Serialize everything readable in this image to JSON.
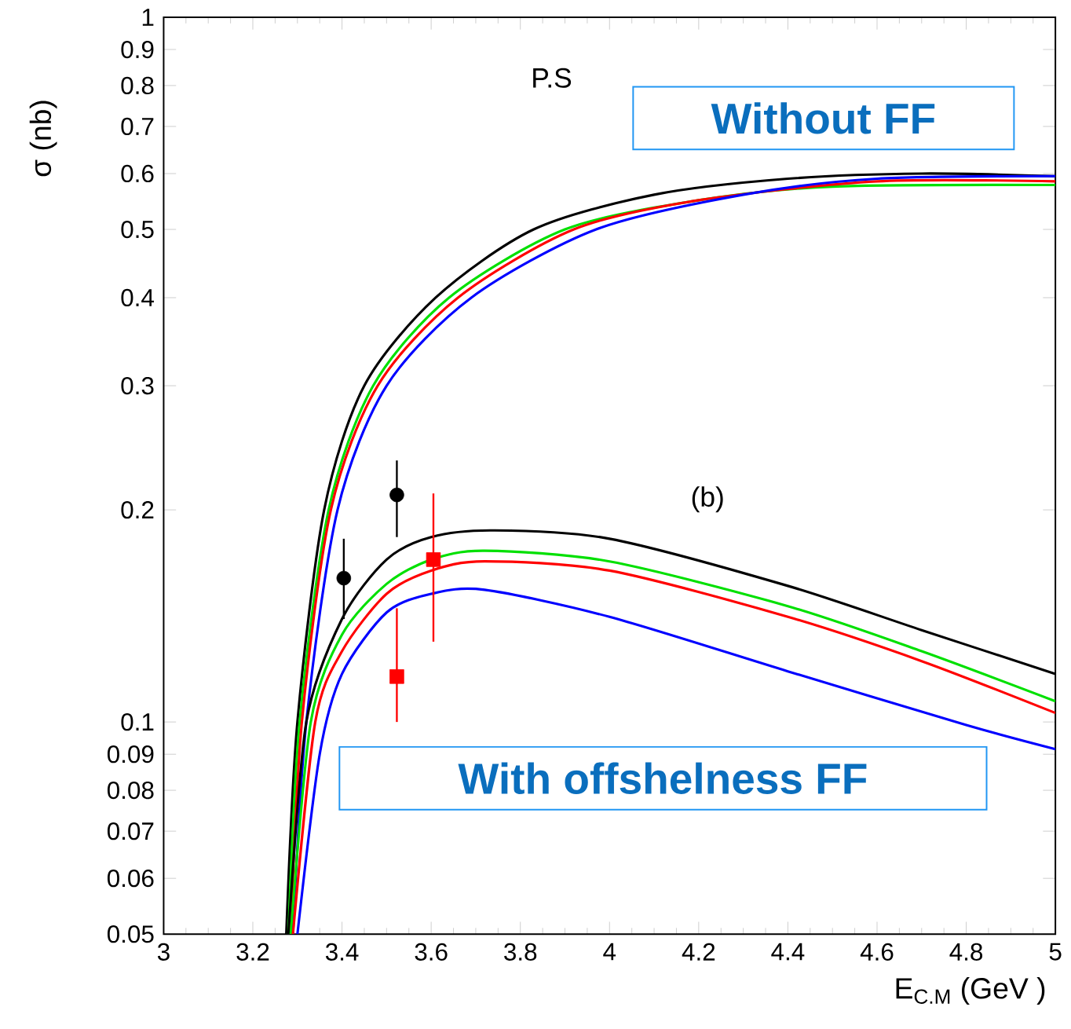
{
  "chart_data": {
    "type": "line",
    "xlabel": "E$_{C.M}$ (GeV )",
    "ylabel": "σ (nb)",
    "log": "y",
    "xlim": [
      3,
      5
    ],
    "ylim": [
      0.05,
      1
    ],
    "xticks": [
      3,
      3.2,
      3.4,
      3.6,
      3.8,
      4,
      4.2,
      4.4,
      4.6,
      4.8,
      5
    ],
    "yticks": [
      0.05,
      0.06,
      0.07,
      0.08,
      0.09,
      0.1,
      0.2,
      0.3,
      0.4,
      0.5,
      0.6,
      0.7,
      0.8,
      0.9,
      1
    ],
    "marker": "none",
    "annotations": [
      "P.S",
      "(b)",
      "Without FF",
      "With offshelness FF"
    ],
    "series": [
      {
        "color": "#000000",
        "x": [
          3.275,
          3.3,
          3.36,
          3.45,
          3.61,
          3.83,
          4.1,
          4.4,
          4.7,
          5
        ],
        "values": [
          0.05,
          0.1,
          0.2,
          0.3,
          0.4,
          0.5,
          0.56,
          0.59,
          0.6,
          0.595
        ]
      },
      {
        "color": "#00e000",
        "x": [
          3.28,
          3.305,
          3.37,
          3.47,
          3.64,
          3.9,
          4.2,
          4.5,
          5
        ],
        "values": [
          0.05,
          0.1,
          0.2,
          0.3,
          0.4,
          0.5,
          0.55,
          0.575,
          0.578
        ]
      },
      {
        "color": "#ff0000",
        "x": [
          3.285,
          3.31,
          3.375,
          3.48,
          3.66,
          3.92,
          4.2,
          4.6,
          5
        ],
        "values": [
          0.05,
          0.1,
          0.2,
          0.3,
          0.4,
          0.5,
          0.55,
          0.585,
          0.585
        ]
      },
      {
        "color": "#0000ff",
        "x": [
          3.29,
          3.32,
          3.39,
          3.5,
          3.69,
          3.97,
          4.3,
          4.6,
          5
        ],
        "values": [
          0.05,
          0.1,
          0.2,
          0.3,
          0.4,
          0.5,
          0.56,
          0.59,
          0.595
        ]
      },
      {
        "color": "#000000",
        "x": [
          3.28,
          3.32,
          3.4,
          3.5,
          3.6,
          3.74,
          4.0,
          4.4,
          4.7,
          5
        ],
        "values": [
          0.05,
          0.1,
          0.14,
          0.17,
          0.183,
          0.187,
          0.182,
          0.156,
          0.135,
          0.117
        ]
      },
      {
        "color": "#00e000",
        "x": [
          3.285,
          3.33,
          3.4,
          3.5,
          3.6,
          3.72,
          4.0,
          4.4,
          4.7,
          5
        ],
        "values": [
          0.05,
          0.1,
          0.133,
          0.157,
          0.17,
          0.175,
          0.169,
          0.146,
          0.126,
          0.107
        ]
      },
      {
        "color": "#ff0000",
        "x": [
          3.29,
          3.34,
          3.4,
          3.5,
          3.6,
          3.72,
          4.0,
          4.4,
          4.7,
          5
        ],
        "values": [
          0.05,
          0.1,
          0.126,
          0.152,
          0.164,
          0.169,
          0.164,
          0.141,
          0.122,
          0.103
        ]
      },
      {
        "color": "#0000ff",
        "x": [
          3.3,
          3.35,
          3.4,
          3.5,
          3.6,
          3.72,
          4.0,
          4.4,
          4.8,
          5
        ],
        "values": [
          0.05,
          0.09,
          0.117,
          0.143,
          0.152,
          0.154,
          0.141,
          0.118,
          0.099,
          0.0915
        ]
      },
      {
        "type": "scatter",
        "marker": "circle",
        "color": "#000000",
        "x": [
          3.404,
          3.523
        ],
        "values": [
          0.16,
          0.21
        ],
        "errors": [
          [
            0.14,
            0.182
          ],
          [
            0.183,
            0.235
          ]
        ]
      },
      {
        "type": "scatter",
        "marker": "square",
        "color": "#ff0000",
        "x": [
          3.523,
          3.605
        ],
        "values": [
          0.116,
          0.17
        ],
        "errors": [
          [
            0.1,
            0.145
          ],
          [
            0.13,
            0.211
          ]
        ]
      }
    ]
  }
}
